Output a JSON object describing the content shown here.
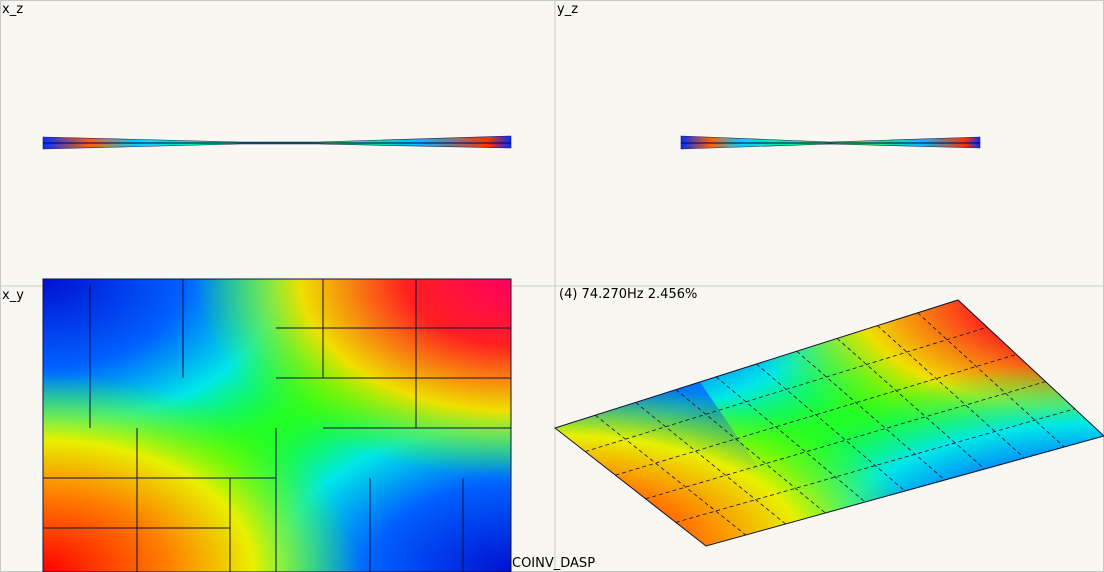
{
  "views": {
    "xz": {
      "label": "x_z"
    },
    "yz": {
      "label": "y_z"
    },
    "xy": {
      "label": "x_y"
    },
    "iso": {
      "label": "(4) 74.270Hz 2.456%"
    }
  },
  "footer": {
    "label": "COINV_DASP"
  }
}
